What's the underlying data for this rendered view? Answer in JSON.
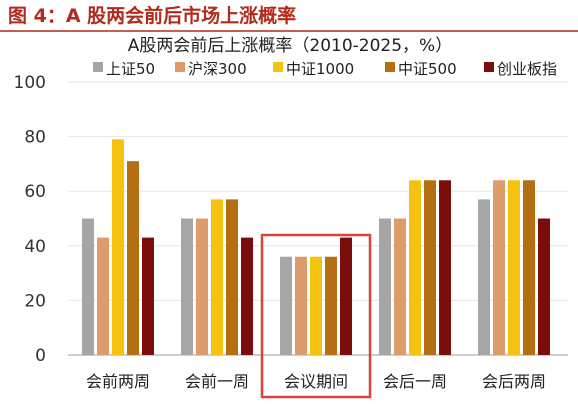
{
  "figure": {
    "title": "图 4：A 股两会前后市场上涨概率",
    "title_color": "#b22a1c"
  },
  "chart_data": {
    "type": "bar",
    "title": "A股两会前后上涨概率（2010-2025，%）",
    "xlabel": "",
    "ylabel": "",
    "ylim": [
      0,
      100
    ],
    "yticks": [
      0,
      20,
      40,
      60,
      80,
      100
    ],
    "grid": true,
    "legend_position": "top",
    "categories": [
      "会前两周",
      "会前一周",
      "会议期间",
      "会后一周",
      "会后两周"
    ],
    "series": [
      {
        "name": "上证50",
        "color": "#a6a6a6",
        "values": [
          50,
          50,
          36,
          50,
          57
        ]
      },
      {
        "name": "沪深300",
        "color": "#dc9c6c",
        "values": [
          43,
          50,
          36,
          50,
          64
        ]
      },
      {
        "name": "中证1000",
        "color": "#f5c20f",
        "values": [
          79,
          57,
          36,
          64,
          64
        ]
      },
      {
        "name": "中证500",
        "color": "#b36f12",
        "values": [
          71,
          57,
          36,
          64,
          64
        ]
      },
      {
        "name": "创业板指",
        "color": "#7b0d0d",
        "values": [
          43,
          43,
          43,
          64,
          50
        ]
      }
    ],
    "highlight": {
      "category": "会议期间",
      "color": "#e0403a"
    }
  }
}
